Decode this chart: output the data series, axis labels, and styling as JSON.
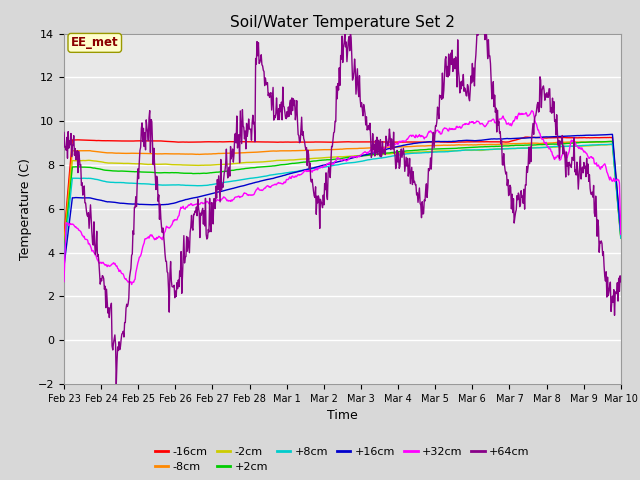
{
  "title": "Soil/Water Temperature Set 2",
  "xlabel": "Time",
  "ylabel": "Temperature (C)",
  "ylim": [
    -2,
    14
  ],
  "yticks": [
    -2,
    0,
    2,
    4,
    6,
    8,
    10,
    12,
    14
  ],
  "annotation_text": "EE_met",
  "annotation_color": "#8B0000",
  "annotation_bg": "#FFFFCC",
  "annotation_edge": "#999900",
  "bg_color": "#D8D8D8",
  "plot_bg": "#E8E8E8",
  "series": [
    {
      "label": "-16cm",
      "color": "#FF0000"
    },
    {
      "label": "-8cm",
      "color": "#FF8800"
    },
    {
      "label": "-2cm",
      "color": "#CCCC00"
    },
    {
      "label": "+2cm",
      "color": "#00CC00"
    },
    {
      "label": "+8cm",
      "color": "#00CCCC"
    },
    {
      "label": "+16cm",
      "color": "#0000CC"
    },
    {
      "label": "+32cm",
      "color": "#FF00FF"
    },
    {
      "label": "+64cm",
      "color": "#880088"
    }
  ],
  "date_labels": [
    "Feb 23",
    "Feb 24",
    "Feb 25",
    "Feb 26",
    "Feb 27",
    "Feb 28",
    "Mar 1",
    "Mar 2",
    "Mar 3",
    "Mar 4",
    "Mar 5",
    "Mar 6",
    "Mar 7",
    "Mar 8",
    "Mar 9",
    "Mar 10"
  ]
}
